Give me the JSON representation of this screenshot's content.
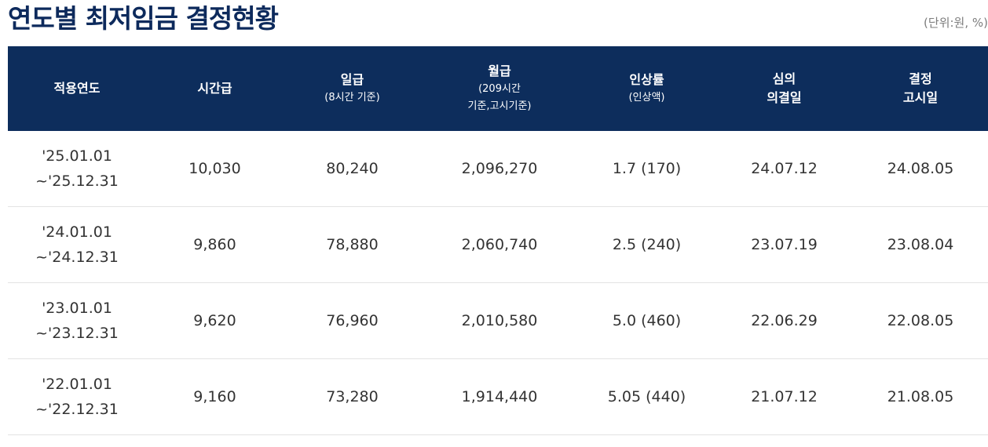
{
  "title": "연도별 최저임금 결정현황",
  "unit_note": "(단위:원, %)",
  "columns": [
    {
      "main": "적용연도",
      "sub": ""
    },
    {
      "main": "시간급",
      "sub": ""
    },
    {
      "main": "일급",
      "sub": "(8시간 기준)"
    },
    {
      "main": "월급",
      "sub": "(209시간",
      "sub2": "기준,고시기준)"
    },
    {
      "main": "인상률",
      "sub": "(인상액)"
    },
    {
      "main": "심의",
      "main2": "의결일"
    },
    {
      "main": "결정",
      "main2": "고시일"
    }
  ],
  "rows": [
    {
      "period_start": "'25.01.01",
      "period_end": "~'25.12.31",
      "hourly": "10,030",
      "daily": "80,240",
      "monthly": "2,096,270",
      "increase": "1.7 (170)",
      "resolution_date": "24.07.12",
      "notice_date": "24.08.05"
    },
    {
      "period_start": "'24.01.01",
      "period_end": "~'24.12.31",
      "hourly": "9,860",
      "daily": "78,880",
      "monthly": "2,060,740",
      "increase": "2.5 (240)",
      "resolution_date": "23.07.19",
      "notice_date": "23.08.04"
    },
    {
      "period_start": "'23.01.01",
      "period_end": "~'23.12.31",
      "hourly": "9,620",
      "daily": "76,960",
      "monthly": "2,010,580",
      "increase": "5.0 (460)",
      "resolution_date": "22.06.29",
      "notice_date": "22.08.05"
    },
    {
      "period_start": "'22.01.01",
      "period_end": "~'22.12.31",
      "hourly": "9,160",
      "daily": "73,280",
      "monthly": "1,914,440",
      "increase": "5.05 (440)",
      "resolution_date": "21.07.12",
      "notice_date": "21.08.05"
    }
  ]
}
